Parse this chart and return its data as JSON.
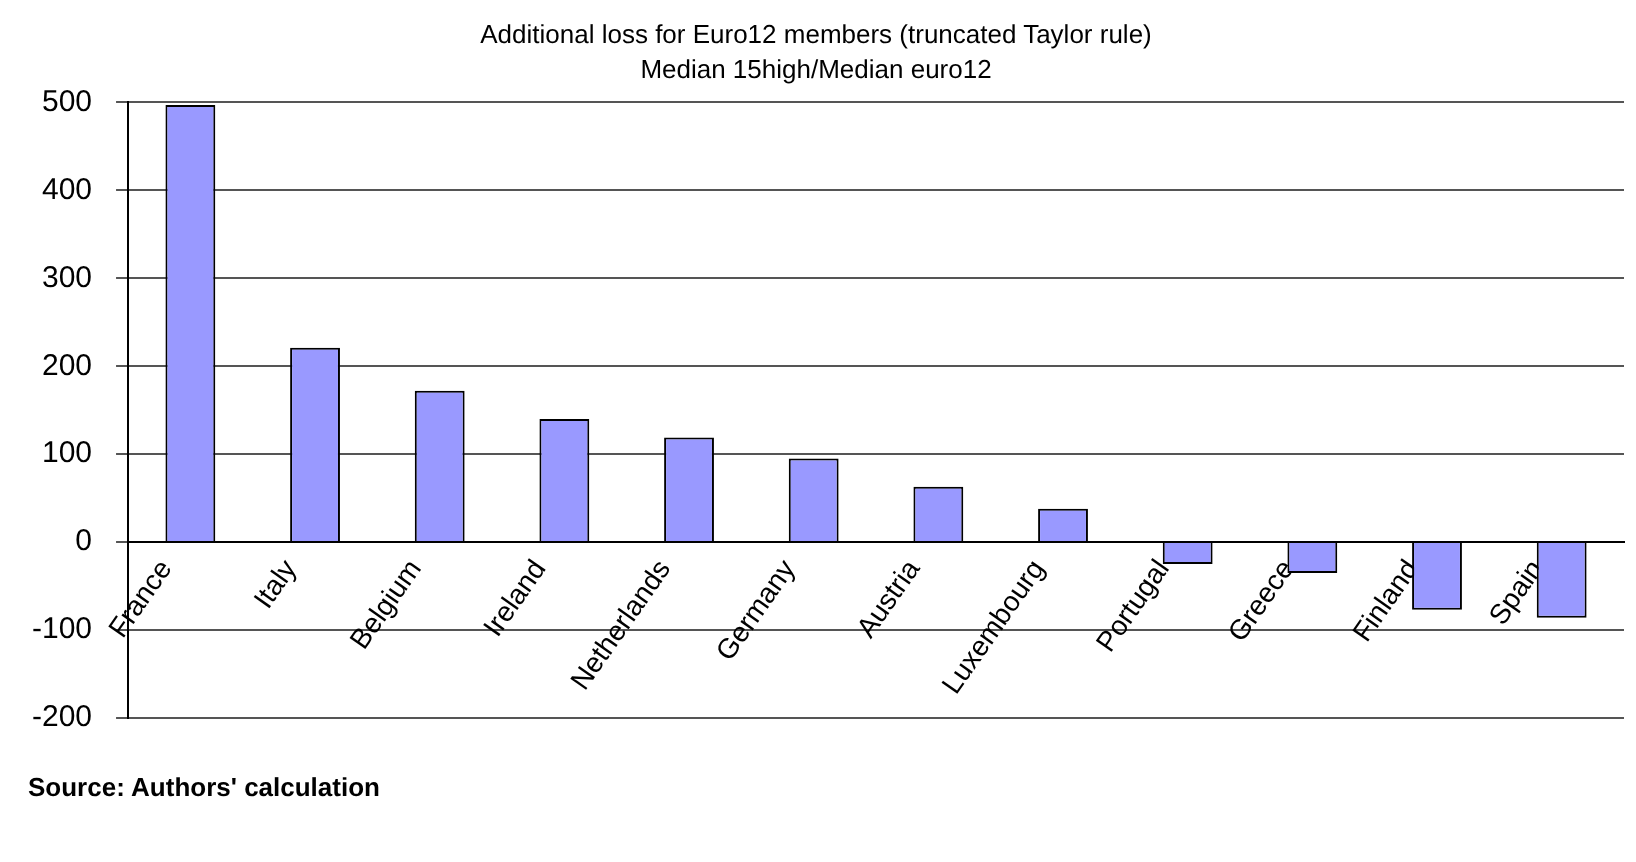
{
  "chart_data": {
    "type": "bar",
    "title": "Additional loss for Euro12 members (truncated Taylor rule)",
    "subtitle": "Median 15high/Median euro12",
    "categories": [
      "France",
      "Italy",
      "Belgium",
      "Ireland",
      "Netherlands",
      "Germany",
      "Austria",
      "Luxembourg",
      "Portugal",
      "Greece",
      "Finland",
      "Spain"
    ],
    "values": [
      497,
      221,
      172,
      140,
      119,
      95,
      63,
      38,
      -25,
      -35,
      -77,
      -86
    ],
    "color": "#9999ff",
    "ylim": [
      -200,
      500
    ],
    "yticks": [
      -200,
      -100,
      0,
      100,
      200,
      300,
      400,
      500
    ],
    "grid": "y",
    "legend": false,
    "annotations": [
      "Source: Authors' calculation"
    ]
  }
}
